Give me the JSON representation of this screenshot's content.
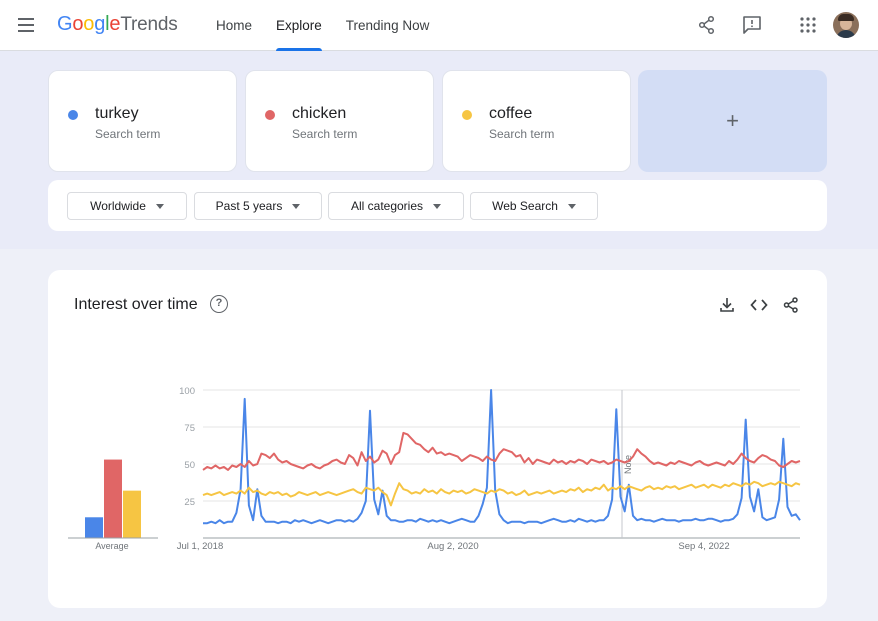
{
  "header": {
    "logo_google": [
      "G",
      "o",
      "o",
      "g",
      "l",
      "e"
    ],
    "logo_trends": "Trends",
    "nav": [
      {
        "label": "Home",
        "active": false
      },
      {
        "label": "Explore",
        "active": true
      },
      {
        "label": "Trending Now",
        "active": false
      }
    ],
    "icons": [
      "menu-icon",
      "share-icon",
      "feedback-icon",
      "apps-icon",
      "avatar"
    ]
  },
  "search_terms": [
    {
      "name": "turkey",
      "sub": "Search term",
      "color": "#4a86e8"
    },
    {
      "name": "chicken",
      "sub": "Search term",
      "color": "#e06666"
    },
    {
      "name": "coffee",
      "sub": "Search term",
      "color": "#f6c543"
    }
  ],
  "add_label": "+",
  "filters": [
    {
      "label": "Worldwide"
    },
    {
      "label": "Past 5 years"
    },
    {
      "label": "All categories"
    },
    {
      "label": "Web Search"
    }
  ],
  "chart": {
    "title": "Interest over time",
    "help": "?",
    "actions": [
      "download-icon",
      "embed-icon",
      "share-icon"
    ]
  },
  "chart_data": {
    "type": "line",
    "ylim": [
      0,
      100
    ],
    "yticks": [
      25,
      50,
      75,
      100
    ],
    "xticks": [
      "Jul 1, 2018",
      "Aug 2, 2020",
      "Sep 4, 2022"
    ],
    "annotation": "Note",
    "average_label": "Average",
    "averages": [
      14,
      53,
      32
    ],
    "series": [
      {
        "name": "turkey",
        "color": "#4a86e8",
        "values": [
          10,
          10,
          11,
          10,
          12,
          10,
          11,
          11,
          17,
          33,
          94,
          22,
          12,
          33,
          15,
          11,
          11,
          11,
          10,
          11,
          11,
          10,
          12,
          11,
          12,
          11,
          10,
          11,
          12,
          11,
          10,
          11,
          12,
          12,
          11,
          12,
          11,
          13,
          17,
          25,
          86,
          26,
          16,
          32,
          15,
          12,
          12,
          11,
          11,
          12,
          12,
          11,
          13,
          12,
          11,
          12,
          11,
          12,
          11,
          10,
          11,
          12,
          13,
          12,
          11,
          11,
          15,
          23,
          34,
          100,
          32,
          16,
          12,
          10,
          11,
          11,
          11,
          10,
          11,
          11,
          11,
          10,
          11,
          12,
          13,
          12,
          11,
          11,
          12,
          11,
          13,
          12,
          11,
          12,
          11,
          12,
          12,
          15,
          26,
          87,
          28,
          18,
          36,
          15,
          12,
          13,
          12,
          12,
          11,
          12,
          13,
          12,
          12,
          12,
          11,
          12,
          12,
          12,
          13,
          12,
          12,
          13,
          13,
          12,
          11,
          12,
          12,
          13,
          16,
          27,
          80,
          28,
          18,
          33,
          14,
          12,
          13,
          14,
          26,
          67,
          21,
          15,
          16,
          12
        ]
      },
      {
        "name": "chicken",
        "color": "#e06666",
        "values": [
          46,
          48,
          47,
          49,
          47,
          48,
          46,
          49,
          48,
          50,
          48,
          52,
          49,
          50,
          57,
          56,
          54,
          57,
          53,
          51,
          52,
          50,
          49,
          48,
          47,
          49,
          50,
          48,
          47,
          49,
          50,
          52,
          53,
          51,
          50,
          56,
          54,
          49,
          58,
          52,
          55,
          51,
          53,
          59,
          57,
          50,
          56,
          58,
          71,
          70,
          67,
          64,
          63,
          60,
          58,
          61,
          57,
          58,
          56,
          57,
          56,
          55,
          52,
          54,
          56,
          55,
          54,
          52,
          55,
          53,
          52,
          57,
          60,
          59,
          58,
          55,
          56,
          51,
          54,
          50,
          53,
          52,
          51,
          50,
          53,
          51,
          52,
          50,
          52,
          51,
          53,
          52,
          50,
          53,
          52,
          51,
          52,
          50,
          51,
          53,
          52,
          51,
          52,
          55,
          60,
          57,
          55,
          52,
          50,
          51,
          50,
          49,
          51,
          50,
          52,
          51,
          50,
          49,
          51,
          52,
          50,
          49,
          50,
          51,
          50,
          49,
          52,
          50,
          53,
          57,
          54,
          52,
          51,
          54,
          56,
          55,
          53,
          52,
          49,
          48,
          50,
          52,
          51,
          52
        ]
      },
      {
        "name": "coffee",
        "color": "#f6c543",
        "values": [
          29,
          30,
          29,
          30,
          31,
          29,
          30,
          31,
          30,
          32,
          30,
          34,
          31,
          32,
          30,
          29,
          31,
          30,
          31,
          29,
          30,
          28,
          29,
          31,
          30,
          29,
          30,
          31,
          29,
          30,
          31,
          30,
          29,
          30,
          31,
          32,
          33,
          31,
          30,
          34,
          33,
          32,
          34,
          31,
          29,
          22,
          30,
          37,
          33,
          32,
          30,
          31,
          30,
          33,
          31,
          32,
          30,
          33,
          31,
          30,
          32,
          31,
          32,
          30,
          31,
          33,
          32,
          31,
          30,
          32,
          31,
          33,
          32,
          30,
          31,
          29,
          30,
          32,
          29,
          30,
          31,
          30,
          31,
          32,
          30,
          31,
          32,
          31,
          33,
          32,
          34,
          31,
          33,
          32,
          34,
          33,
          36,
          32,
          34,
          33,
          35,
          33,
          35,
          34,
          33,
          32,
          34,
          35,
          33,
          34,
          33,
          35,
          34,
          35,
          33,
          34,
          35,
          36,
          34,
          35,
          36,
          34,
          36,
          35,
          34,
          36,
          35,
          37,
          36,
          35,
          37,
          36,
          38,
          37,
          35,
          36,
          37,
          36,
          38,
          37,
          36,
          35,
          37,
          36
        ]
      }
    ]
  }
}
